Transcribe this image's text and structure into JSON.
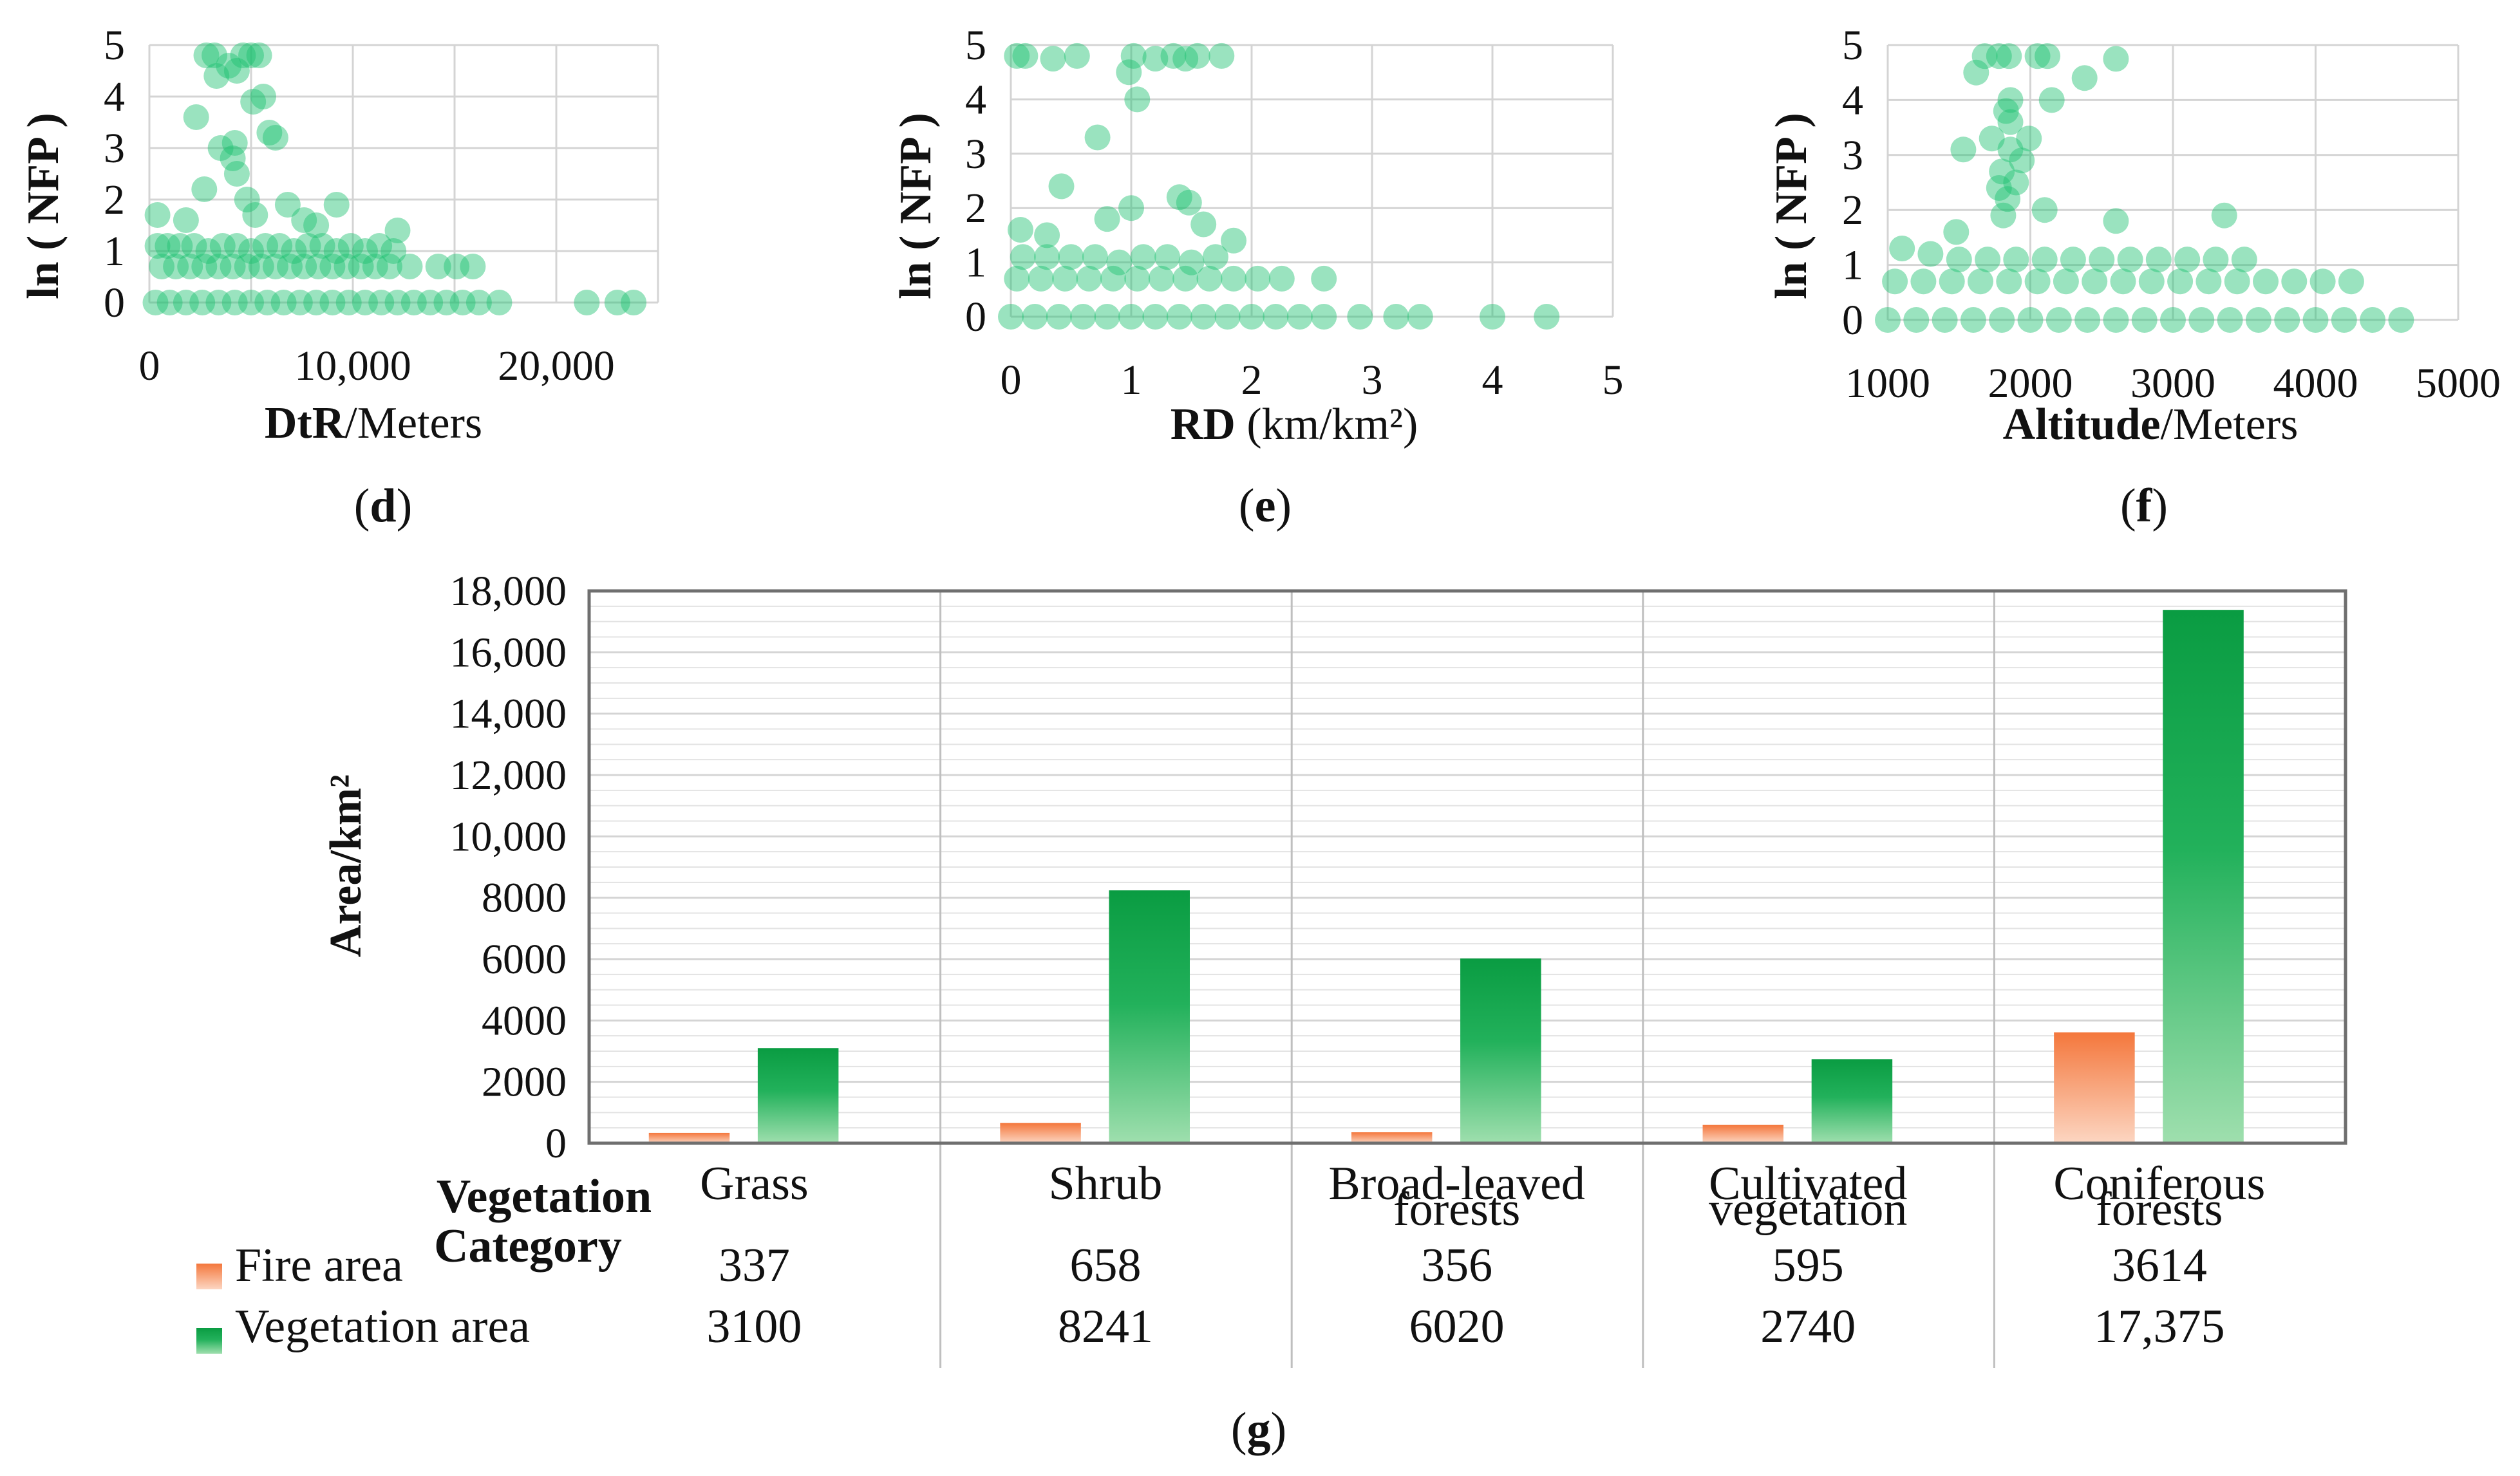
{
  "scatter_panels": [
    {
      "id": "d",
      "panel_label": "d",
      "x_label_bold": "DtR",
      "x_label_rest": "/Meters",
      "y_label": "ln ( NFP )",
      "x_ticks": [
        "0",
        "10,000",
        "20,000"
      ],
      "y_ticks": [
        "0",
        "1",
        "2",
        "3",
        "4",
        "5"
      ]
    },
    {
      "id": "e",
      "panel_label": "e",
      "x_label_bold": "RD",
      "x_label_rest": " (km/km²)",
      "y_label": "ln ( NFP )",
      "x_ticks": [
        "0",
        "1",
        "2",
        "3",
        "4",
        "5"
      ],
      "y_ticks": [
        "0",
        "1",
        "2",
        "3",
        "4",
        "5"
      ]
    },
    {
      "id": "f",
      "panel_label": "f",
      "x_label_bold": "Altitude",
      "x_label_rest": "/Meters",
      "y_label": "ln ( NFP )",
      "x_ticks": [
        "1000",
        "2000",
        "3000",
        "4000",
        "5000"
      ],
      "y_ticks": [
        "0",
        "1",
        "2",
        "3",
        "4",
        "5"
      ]
    }
  ],
  "bar_panel": {
    "panel_label": "g",
    "y_label": "Area/km²",
    "y_ticks": [
      "0",
      "2000",
      "4000",
      "6000",
      "8000",
      "10,000",
      "12,000",
      "14,000",
      "16,000",
      "18,000"
    ],
    "category_header_line1": "Vegetation",
    "category_header_line2": "Category",
    "categories": [
      {
        "line1": "Grass",
        "line2": ""
      },
      {
        "line1": "Shrub",
        "line2": ""
      },
      {
        "line1": "Broad-leaved",
        "line2": "forests"
      },
      {
        "line1": "Cultivated",
        "line2": "vegetation"
      },
      {
        "line1": "Coniferous",
        "line2": "forests"
      }
    ],
    "fire_label": "Fire area",
    "veg_label": "Vegetation area",
    "fire_values_text": [
      "337",
      "658",
      "356",
      "595",
      "3614"
    ],
    "veg_values_text": [
      "3100",
      "8241",
      "6020",
      "2740",
      "17,375"
    ]
  },
  "chart_data": [
    {
      "type": "scatter",
      "xlabel": "DtR/Meters",
      "ylabel": "ln ( NFP )",
      "xlim": [
        0,
        25000
      ],
      "ylim": [
        0,
        5
      ],
      "grid": true,
      "color": "#1fc070",
      "series": [
        {
          "points": [
            [
              2800,
              4.8
            ],
            [
              3200,
              4.8
            ],
            [
              4600,
              4.8
            ],
            [
              5000,
              4.8
            ],
            [
              5400,
              4.8
            ],
            [
              3900,
              4.6
            ],
            [
              4300,
              4.5
            ],
            [
              3300,
              4.4
            ],
            [
              5600,
              4.0
            ],
            [
              5100,
              3.9
            ],
            [
              2300,
              3.6
            ],
            [
              4200,
              3.1
            ],
            [
              5900,
              3.3
            ],
            [
              6200,
              3.2
            ],
            [
              3500,
              3.0
            ],
            [
              4100,
              2.8
            ],
            [
              4300,
              2.5
            ],
            [
              2700,
              2.2
            ],
            [
              4800,
              2.0
            ],
            [
              6800,
              1.9
            ],
            [
              9200,
              1.9
            ],
            [
              400,
              1.7
            ],
            [
              5200,
              1.7
            ],
            [
              1800,
              1.6
            ],
            [
              7600,
              1.6
            ],
            [
              8200,
              1.5
            ],
            [
              12200,
              1.4
            ],
            [
              400,
              1.1
            ],
            [
              900,
              1.1
            ],
            [
              1500,
              1.1
            ],
            [
              2200,
              1.1
            ],
            [
              2900,
              1.0
            ],
            [
              3600,
              1.1
            ],
            [
              4300,
              1.1
            ],
            [
              5000,
              1.0
            ],
            [
              5700,
              1.1
            ],
            [
              6400,
              1.1
            ],
            [
              7100,
              1.0
            ],
            [
              7800,
              1.1
            ],
            [
              8500,
              1.1
            ],
            [
              9200,
              1.0
            ],
            [
              9900,
              1.1
            ],
            [
              10600,
              1.0
            ],
            [
              11300,
              1.1
            ],
            [
              12000,
              1.0
            ],
            [
              600,
              0.7
            ],
            [
              1300,
              0.7
            ],
            [
              2000,
              0.7
            ],
            [
              2700,
              0.7
            ],
            [
              3400,
              0.7
            ],
            [
              4100,
              0.7
            ],
            [
              4800,
              0.7
            ],
            [
              5500,
              0.7
            ],
            [
              6200,
              0.7
            ],
            [
              6900,
              0.7
            ],
            [
              7600,
              0.7
            ],
            [
              8300,
              0.7
            ],
            [
              9000,
              0.7
            ],
            [
              9700,
              0.7
            ],
            [
              10400,
              0.7
            ],
            [
              11100,
              0.7
            ],
            [
              11800,
              0.7
            ],
            [
              12800,
              0.7
            ],
            [
              14200,
              0.7
            ],
            [
              15100,
              0.7
            ],
            [
              15900,
              0.7
            ],
            [
              300,
              0
            ],
            [
              1000,
              0
            ],
            [
              1800,
              0
            ],
            [
              2600,
              0
            ],
            [
              3400,
              0
            ],
            [
              4200,
              0
            ],
            [
              5000,
              0
            ],
            [
              5800,
              0
            ],
            [
              6600,
              0
            ],
            [
              7400,
              0
            ],
            [
              8200,
              0
            ],
            [
              9000,
              0
            ],
            [
              9800,
              0
            ],
            [
              10600,
              0
            ],
            [
              11400,
              0
            ],
            [
              12200,
              0
            ],
            [
              13000,
              0
            ],
            [
              13800,
              0
            ],
            [
              14600,
              0
            ],
            [
              15400,
              0
            ],
            [
              16200,
              0
            ],
            [
              17200,
              0
            ],
            [
              21500,
              0
            ],
            [
              23000,
              0
            ],
            [
              23800,
              0
            ]
          ]
        }
      ]
    },
    {
      "type": "scatter",
      "xlabel": "RD (km/km²)",
      "ylabel": "ln ( NFP )",
      "xlim": [
        0,
        5
      ],
      "ylim": [
        0,
        5
      ],
      "grid": true,
      "color": "#1fc070",
      "series": [
        {
          "points": [
            [
              0.05,
              4.8
            ],
            [
              0.12,
              4.8
            ],
            [
              0.35,
              4.75
            ],
            [
              0.55,
              4.8
            ],
            [
              1.02,
              4.8
            ],
            [
              1.2,
              4.75
            ],
            [
              1.35,
              4.8
            ],
            [
              1.45,
              4.75
            ],
            [
              1.55,
              4.8
            ],
            [
              1.75,
              4.8
            ],
            [
              0.98,
              4.5
            ],
            [
              1.05,
              4.0
            ],
            [
              0.72,
              3.3
            ],
            [
              0.42,
              2.4
            ],
            [
              1.4,
              2.2
            ],
            [
              1.48,
              2.1
            ],
            [
              1.0,
              2.0
            ],
            [
              0.8,
              1.8
            ],
            [
              1.6,
              1.7
            ],
            [
              1.85,
              1.4
            ],
            [
              0.08,
              1.6
            ],
            [
              0.3,
              1.5
            ],
            [
              0.1,
              1.1
            ],
            [
              0.3,
              1.1
            ],
            [
              0.5,
              1.1
            ],
            [
              0.7,
              1.1
            ],
            [
              0.9,
              1.0
            ],
            [
              1.1,
              1.1
            ],
            [
              1.3,
              1.1
            ],
            [
              1.5,
              1.0
            ],
            [
              1.7,
              1.1
            ],
            [
              0.05,
              0.7
            ],
            [
              0.25,
              0.7
            ],
            [
              0.45,
              0.7
            ],
            [
              0.65,
              0.7
            ],
            [
              0.85,
              0.7
            ],
            [
              1.05,
              0.7
            ],
            [
              1.25,
              0.7
            ],
            [
              1.45,
              0.7
            ],
            [
              1.65,
              0.7
            ],
            [
              1.85,
              0.7
            ],
            [
              2.05,
              0.7
            ],
            [
              2.25,
              0.7
            ],
            [
              2.6,
              0.7
            ],
            [
              0.0,
              0
            ],
            [
              0.2,
              0
            ],
            [
              0.4,
              0
            ],
            [
              0.6,
              0
            ],
            [
              0.8,
              0
            ],
            [
              1.0,
              0
            ],
            [
              1.2,
              0
            ],
            [
              1.4,
              0
            ],
            [
              1.6,
              0
            ],
            [
              1.8,
              0
            ],
            [
              2.0,
              0
            ],
            [
              2.2,
              0
            ],
            [
              2.4,
              0
            ],
            [
              2.6,
              0
            ],
            [
              2.9,
              0
            ],
            [
              3.2,
              0
            ],
            [
              3.4,
              0
            ],
            [
              4.0,
              0
            ],
            [
              4.45,
              0
            ]
          ]
        }
      ]
    },
    {
      "type": "scatter",
      "xlabel": "Altitude/Meters",
      "ylabel": "ln ( NFP )",
      "xlim": [
        1000,
        5000
      ],
      "ylim": [
        0,
        5
      ],
      "grid": true,
      "color": "#1fc070",
      "series": [
        {
          "points": [
            [
              1680,
              4.8
            ],
            [
              1780,
              4.8
            ],
            [
              1850,
              4.8
            ],
            [
              2050,
              4.8
            ],
            [
              2120,
              4.8
            ],
            [
              2600,
              4.75
            ],
            [
              1620,
              4.5
            ],
            [
              2380,
              4.4
            ],
            [
              1860,
              4.0
            ],
            [
              2150,
              4.0
            ],
            [
              1830,
              3.8
            ],
            [
              1860,
              3.6
            ],
            [
              1730,
              3.3
            ],
            [
              1990,
              3.3
            ],
            [
              1860,
              3.1
            ],
            [
              1530,
              3.1
            ],
            [
              1940,
              2.9
            ],
            [
              1800,
              2.7
            ],
            [
              1900,
              2.5
            ],
            [
              1780,
              2.4
            ],
            [
              1840,
              2.2
            ],
            [
              2100,
              2.0
            ],
            [
              1810,
              1.9
            ],
            [
              3360,
              1.9
            ],
            [
              2600,
              1.8
            ],
            [
              1480,
              1.6
            ],
            [
              1100,
              1.3
            ],
            [
              1300,
              1.2
            ],
            [
              1500,
              1.1
            ],
            [
              1700,
              1.1
            ],
            [
              1900,
              1.1
            ],
            [
              2100,
              1.1
            ],
            [
              2300,
              1.1
            ],
            [
              2500,
              1.1
            ],
            [
              2700,
              1.1
            ],
            [
              2900,
              1.1
            ],
            [
              3100,
              1.1
            ],
            [
              3300,
              1.1
            ],
            [
              3500,
              1.1
            ],
            [
              1050,
              0.7
            ],
            [
              1250,
              0.7
            ],
            [
              1450,
              0.7
            ],
            [
              1650,
              0.7
            ],
            [
              1850,
              0.7
            ],
            [
              2050,
              0.7
            ],
            [
              2250,
              0.7
            ],
            [
              2450,
              0.7
            ],
            [
              2650,
              0.7
            ],
            [
              2850,
              0.7
            ],
            [
              3050,
              0.7
            ],
            [
              3250,
              0.7
            ],
            [
              3450,
              0.7
            ],
            [
              3650,
              0.7
            ],
            [
              3850,
              0.7
            ],
            [
              4050,
              0.7
            ],
            [
              4250,
              0.7
            ],
            [
              1000,
              0
            ],
            [
              1200,
              0
            ],
            [
              1400,
              0
            ],
            [
              1600,
              0
            ],
            [
              1800,
              0
            ],
            [
              2000,
              0
            ],
            [
              2200,
              0
            ],
            [
              2400,
              0
            ],
            [
              2600,
              0
            ],
            [
              2800,
              0
            ],
            [
              3000,
              0
            ],
            [
              3200,
              0
            ],
            [
              3400,
              0
            ],
            [
              3600,
              0
            ],
            [
              3800,
              0
            ],
            [
              4000,
              0
            ],
            [
              4200,
              0
            ],
            [
              4400,
              0
            ],
            [
              4600,
              0
            ]
          ]
        }
      ]
    },
    {
      "type": "bar",
      "ylabel": "Area/km²",
      "xlabel": "Vegetation Category",
      "ylim": [
        0,
        18000
      ],
      "categories": [
        "Grass",
        "Shrub",
        "Broad-leaved forests",
        "Cultivated vegetation",
        "Coniferous forests"
      ],
      "series": [
        {
          "name": "Fire area",
          "values": [
            337,
            658,
            356,
            595,
            3614
          ],
          "color": "#f5834a"
        },
        {
          "name": "Vegetation area",
          "values": [
            3100,
            8241,
            6020,
            2740,
            17375
          ],
          "color": "#0e9e46"
        }
      ],
      "grid": true
    }
  ]
}
